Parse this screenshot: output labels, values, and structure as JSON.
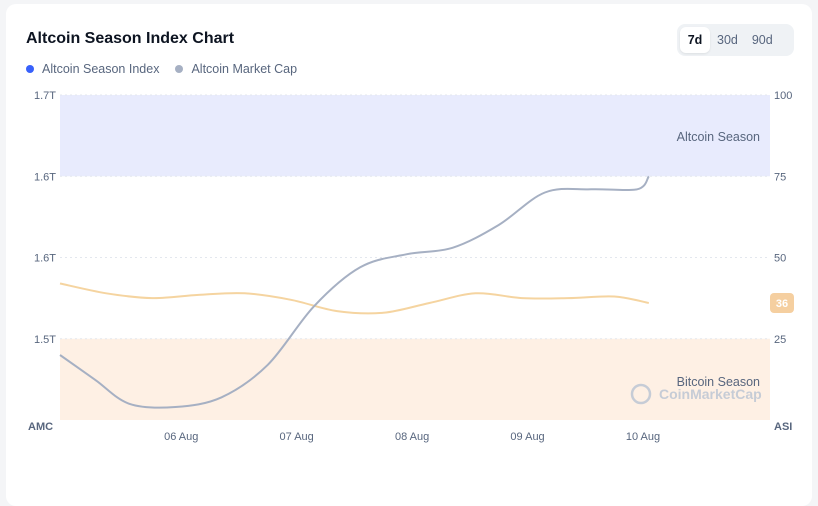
{
  "header": {
    "title": "Altcoin Season Index Chart"
  },
  "range_options": [
    "7d",
    "30d",
    "90d"
  ],
  "range_selected": "7d",
  "watermark": "CoinMarketCap",
  "colors": {
    "index_line": "#f5d4a0",
    "index_legend_dot": "#3861fb",
    "market_cap_line": "#a6b0c3",
    "altcoin_zone": "#e8ebfd",
    "bitcoin_zone": "#fef0e4",
    "badge": "#f5cfa0"
  },
  "chart_data": {
    "type": "line",
    "legend_position": "top-left",
    "x_ticks": [
      "06 Aug",
      "07 Aug",
      "08 Aug",
      "09 Aug",
      "10 Aug"
    ],
    "left_axis": {
      "label": "AMC",
      "ticks": [
        "1.7T",
        "1.6T",
        "1.6T",
        "1.5T"
      ]
    },
    "right_axis": {
      "label": "ASI",
      "ylim": [
        0,
        100
      ],
      "ticks": [
        "100",
        "75",
        "50",
        "25"
      ]
    },
    "zones": [
      {
        "label": "Altcoin Season",
        "from": 75,
        "to": 100
      },
      {
        "label": "Bitcoin Season",
        "from": 0,
        "to": 25
      }
    ],
    "current_index_badge": "36",
    "series": [
      {
        "name": "Altcoin Season Index",
        "axis": "right",
        "x": [
          0,
          0.4,
          0.8,
          1.2,
          1.6,
          2.0,
          2.4,
          2.8,
          3.2,
          3.6,
          4.0,
          4.4,
          4.8,
          5.1
        ],
        "y": [
          42,
          39,
          37.5,
          38.5,
          39,
          37,
          33.5,
          33,
          36,
          39,
          37.5,
          37.5,
          38,
          36
        ]
      },
      {
        "name": "Altcoin Market Cap",
        "axis": "right",
        "x": [
          0,
          0.3,
          0.6,
          1.0,
          1.4,
          1.8,
          2.2,
          2.6,
          3.0,
          3.4,
          3.8,
          4.2,
          4.6,
          5.0,
          5.1
        ],
        "y": [
          20,
          12.5,
          5,
          4,
          7,
          17,
          35,
          47,
          51,
          53,
          60,
          70,
          71,
          71,
          75
        ]
      }
    ]
  }
}
